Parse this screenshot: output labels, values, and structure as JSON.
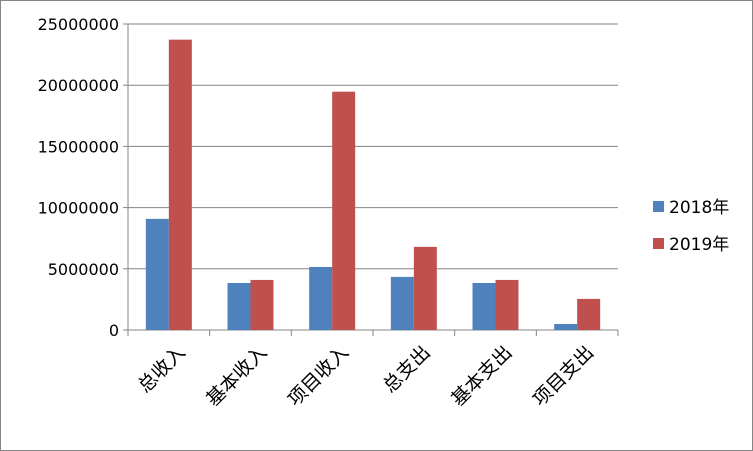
{
  "chart_data": {
    "type": "bar",
    "title": "",
    "xlabel": "",
    "ylabel": "",
    "categories": [
      "总收入",
      "基本收入",
      "项目收入",
      "总支出",
      "基本支出",
      "项目支出"
    ],
    "series": [
      {
        "name": "2018年",
        "color": "#4F81BD",
        "values": [
          9080000,
          3840000,
          5150000,
          4340000,
          3840000,
          490000
        ]
      },
      {
        "name": "2019年",
        "color": "#C0504D",
        "values": [
          23720000,
          4090000,
          19470000,
          6790000,
          4090000,
          2540000
        ]
      }
    ],
    "ylim": [
      0,
      25000000
    ],
    "yticks": [
      "0",
      "5000000",
      "10000000",
      "15000000",
      "20000000",
      "25000000"
    ],
    "grid": true,
    "legend": "right"
  }
}
